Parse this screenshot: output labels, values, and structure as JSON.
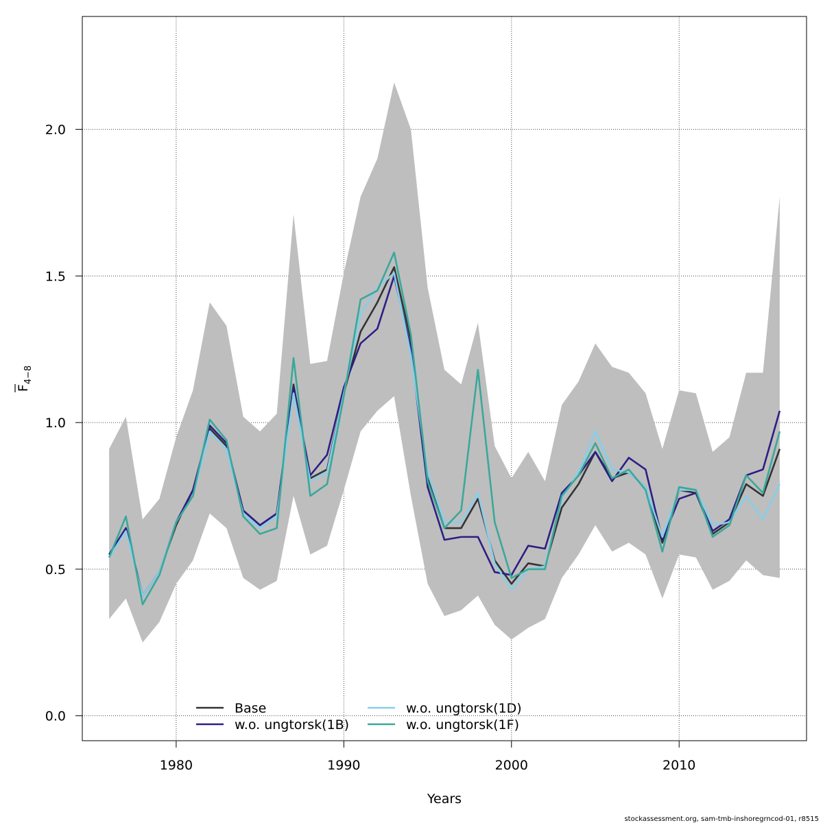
{
  "chart_data": {
    "type": "line",
    "xlabel": "Years",
    "ylabel_main": "F",
    "ylabel_sub": "4−8",
    "xlim": [
      1974.4,
      2017.6
    ],
    "ylim": [
      -0.085,
      2.385
    ],
    "xticks": [
      1980,
      1990,
      2000,
      2010
    ],
    "yticks": [
      0.0,
      0.5,
      1.0,
      1.5,
      2.0
    ],
    "ytick_labels": [
      "0.0",
      "0.5",
      "1.0",
      "1.5",
      "2.0"
    ],
    "grid": true,
    "legend_placement": "bottom-center",
    "credit": "stockassessment.org, sam-tmb-inshoregrncod-01, r8515",
    "x": [
      1976,
      1977,
      1978,
      1979,
      1980,
      1981,
      1982,
      1983,
      1984,
      1985,
      1986,
      1987,
      1988,
      1989,
      1990,
      1991,
      1992,
      1993,
      1994,
      1995,
      1996,
      1997,
      1998,
      1999,
      2000,
      2001,
      2002,
      2003,
      2004,
      2005,
      2006,
      2007,
      2008,
      2009,
      2010,
      2011,
      2012,
      2013,
      2014,
      2015,
      2016
    ],
    "band": {
      "color": "#bebebe",
      "upper": [
        0.91,
        1.02,
        0.67,
        0.74,
        0.95,
        1.11,
        1.41,
        1.33,
        1.02,
        0.97,
        1.03,
        1.71,
        1.2,
        1.21,
        1.51,
        1.77,
        1.9,
        2.16,
        2.0,
        1.46,
        1.18,
        1.13,
        1.34,
        0.92,
        0.81,
        0.9,
        0.8,
        1.06,
        1.14,
        1.27,
        1.19,
        1.17,
        1.1,
        0.91,
        1.11,
        1.1,
        0.9,
        0.95,
        1.17,
        1.17,
        1.77
      ],
      "lower": [
        0.33,
        0.4,
        0.25,
        0.32,
        0.45,
        0.53,
        0.69,
        0.64,
        0.47,
        0.43,
        0.46,
        0.75,
        0.55,
        0.58,
        0.77,
        0.97,
        1.04,
        1.09,
        0.75,
        0.45,
        0.34,
        0.36,
        0.41,
        0.31,
        0.26,
        0.3,
        0.33,
        0.47,
        0.55,
        0.65,
        0.56,
        0.59,
        0.55,
        0.4,
        0.55,
        0.54,
        0.43,
        0.46,
        0.53,
        0.48,
        0.47
      ]
    },
    "series": [
      {
        "name": "Base",
        "color": "#333333",
        "values": [
          0.55,
          0.64,
          0.41,
          0.49,
          0.65,
          0.77,
          0.98,
          0.92,
          0.7,
          0.65,
          0.69,
          1.13,
          0.81,
          0.84,
          1.1,
          1.31,
          1.41,
          1.53,
          1.28,
          0.81,
          0.64,
          0.64,
          0.74,
          0.53,
          0.45,
          0.52,
          0.51,
          0.71,
          0.79,
          0.9,
          0.81,
          0.83,
          0.78,
          0.59,
          0.77,
          0.76,
          0.62,
          0.66,
          0.79,
          0.75,
          0.91
        ]
      },
      {
        "name": "w.o. ungtorsk(1B)",
        "color": "#2d1e84",
        "values": [
          0.55,
          0.64,
          0.41,
          0.49,
          0.66,
          0.77,
          0.99,
          0.93,
          0.7,
          0.65,
          0.69,
          1.12,
          0.82,
          0.89,
          1.12,
          1.27,
          1.32,
          1.5,
          1.25,
          0.78,
          0.6,
          0.61,
          0.61,
          0.49,
          0.48,
          0.58,
          0.57,
          0.76,
          0.82,
          0.9,
          0.8,
          0.88,
          0.84,
          0.6,
          0.74,
          0.76,
          0.63,
          0.67,
          0.82,
          0.84,
          1.04
        ]
      },
      {
        "name": "w.o. ungtorsk(1D)",
        "color": "#87ceeb",
        "values": [
          0.54,
          0.63,
          0.41,
          0.49,
          0.66,
          0.75,
          0.97,
          0.91,
          0.69,
          0.64,
          0.68,
          1.1,
          0.8,
          0.83,
          1.1,
          1.37,
          1.46,
          1.51,
          1.23,
          0.83,
          0.66,
          0.66,
          0.76,
          0.52,
          0.43,
          0.5,
          0.51,
          0.74,
          0.83,
          0.97,
          0.84,
          0.83,
          0.78,
          0.61,
          0.77,
          0.77,
          0.65,
          0.66,
          0.75,
          0.67,
          0.79
        ]
      },
      {
        "name": "w.o. ungtorsk(1F)",
        "color": "#3aa89a",
        "values": [
          0.54,
          0.68,
          0.38,
          0.48,
          0.66,
          0.75,
          1.01,
          0.94,
          0.68,
          0.62,
          0.64,
          1.22,
          0.75,
          0.79,
          1.09,
          1.42,
          1.45,
          1.58,
          1.3,
          0.8,
          0.64,
          0.7,
          1.18,
          0.66,
          0.47,
          0.5,
          0.5,
          0.75,
          0.82,
          0.93,
          0.81,
          0.84,
          0.77,
          0.56,
          0.78,
          0.77,
          0.61,
          0.65,
          0.82,
          0.76,
          0.97
        ]
      }
    ]
  }
}
